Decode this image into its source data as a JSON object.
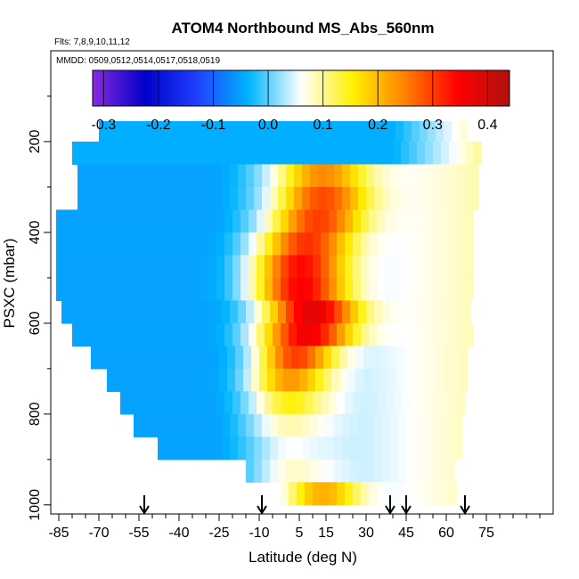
{
  "chart_data": {
    "type": "heatmap",
    "title": "ATOM4 Northbound MS_Abs_560nm",
    "flights_label": "Flts: 7,8,9,10,11,12",
    "dates_label": "MMDD: 0509,0512,0514,0517,0518,0519",
    "xlabel": "Latitude (deg N)",
    "ylabel": "PSXC (mbar)",
    "xlim": [
      -88,
      100
    ],
    "ylim": [
      1020,
      0
    ],
    "x_ticks": [
      -85,
      -70,
      -55,
      -40,
      -25,
      -10,
      5,
      15,
      30,
      45,
      60,
      75
    ],
    "y_ticks": [
      200,
      400,
      600,
      800,
      1000
    ],
    "colorbar": {
      "ticks": [
        -0.3,
        -0.2,
        -0.1,
        0.0,
        0.1,
        0.2,
        0.3,
        0.4
      ],
      "range": [
        -0.32,
        0.44
      ],
      "colors": [
        "#8a2be2",
        "#0000c8",
        "#1f3fff",
        "#00b4ff",
        "#ffffff",
        "#fff000",
        "#ff8000",
        "#ff0000",
        "#b01010"
      ]
    },
    "layers": [
      {
        "p": 180,
        "lat_min": -70,
        "lat_max": 68
      },
      {
        "p": 225,
        "lat_min": -80,
        "lat_max": 73
      },
      {
        "p": 275,
        "lat_min": -78,
        "lat_max": 72
      },
      {
        "p": 325,
        "lat_min": -78,
        "lat_max": 71
      },
      {
        "p": 375,
        "lat_min": -86,
        "lat_max": 70
      },
      {
        "p": 425,
        "lat_min": -86,
        "lat_max": 70
      },
      {
        "p": 475,
        "lat_min": -86,
        "lat_max": 69
      },
      {
        "p": 525,
        "lat_min": -86,
        "lat_max": 69
      },
      {
        "p": 575,
        "lat_min": -84,
        "lat_max": 69
      },
      {
        "p": 625,
        "lat_min": -80,
        "lat_max": 68
      },
      {
        "p": 675,
        "lat_min": -73,
        "lat_max": 68
      },
      {
        "p": 725,
        "lat_min": -67,
        "lat_max": 67
      },
      {
        "p": 775,
        "lat_min": -62,
        "lat_max": 66
      },
      {
        "p": 825,
        "lat_min": -57,
        "lat_max": 65
      },
      {
        "p": 875,
        "lat_min": -48,
        "lat_max": 64
      },
      {
        "p": 925,
        "lat_min": -15,
        "lat_max": 63
      },
      {
        "p": 975,
        "lat_min": -2,
        "lat_max": 63
      }
    ],
    "plume_centers": [
      {
        "p": 275,
        "lat": 14,
        "value": 0.24
      },
      {
        "p": 325,
        "lat": 14,
        "value": 0.29
      },
      {
        "p": 375,
        "lat": 12,
        "value": 0.3
      },
      {
        "p": 425,
        "lat": 8,
        "value": 0.31
      },
      {
        "p": 475,
        "lat": 6,
        "value": 0.34
      },
      {
        "p": 525,
        "lat": 6,
        "value": 0.35
      },
      {
        "p": 575,
        "lat": 10,
        "value": 0.38
      },
      {
        "p": 625,
        "lat": 8,
        "value": 0.36
      },
      {
        "p": 675,
        "lat": 4,
        "value": 0.3
      },
      {
        "p": 725,
        "lat": 2,
        "value": 0.23
      },
      {
        "p": 775,
        "lat": 2,
        "value": 0.15
      },
      {
        "p": 825,
        "lat": 2,
        "value": 0.09
      },
      {
        "p": 875,
        "lat": 3,
        "value": 0.06
      },
      {
        "p": 925,
        "lat": 4,
        "value": 0.08
      },
      {
        "p": 975,
        "lat": 14,
        "value": 0.21
      }
    ],
    "background_values": {
      "upper": -0.04,
      "west_mid": -0.05,
      "east": 0.04
    },
    "arrows_lat": [
      -53,
      -9,
      39,
      45,
      67
    ]
  }
}
